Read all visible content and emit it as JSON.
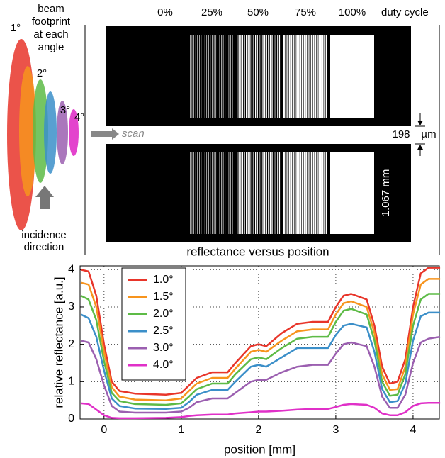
{
  "diagram": {
    "footprint_label": [
      "beam",
      "footprint",
      "at each",
      "angle"
    ],
    "angles": [
      "1°",
      "2°",
      "3°",
      "4°"
    ],
    "incidence_label": [
      "incidence",
      "direction"
    ],
    "duty_labels": [
      "0%",
      "25%",
      "50%",
      "75%",
      "100%"
    ],
    "duty_title": "duty cycle",
    "scan": "scan",
    "gap_value": "198",
    "gap_unit": "µm",
    "width_label": "1.067 mm",
    "section_title": "reflectance versus position"
  },
  "chart_data": {
    "type": "line",
    "xlabel": "position [mm]",
    "ylabel": "relative reflectance [a.u.]",
    "x": [
      -0.3,
      -0.2,
      -0.1,
      0,
      0.1,
      0.2,
      0.4,
      0.8,
      1.0,
      1.1,
      1.2,
      1.4,
      1.6,
      1.7,
      1.9,
      2.0,
      2.1,
      2.3,
      2.5,
      2.7,
      2.9,
      3.0,
      3.1,
      3.2,
      3.4,
      3.5,
      3.6,
      3.7,
      3.8,
      3.9,
      4.0,
      4.1,
      4.2,
      4.35
    ],
    "series": [
      {
        "name": "1.0°",
        "color": "#e8352a",
        "values": [
          4.0,
          3.95,
          3.3,
          2.0,
          1.0,
          0.75,
          0.68,
          0.65,
          0.7,
          0.9,
          1.1,
          1.25,
          1.25,
          1.5,
          1.95,
          2.0,
          1.95,
          2.3,
          2.55,
          2.6,
          2.6,
          3.0,
          3.3,
          3.35,
          3.2,
          2.5,
          1.4,
          0.95,
          1.0,
          1.6,
          3.0,
          3.9,
          4.05,
          4.05
        ]
      },
      {
        "name": "1.5°",
        "color": "#f7941d",
        "values": [
          3.65,
          3.6,
          3.0,
          1.8,
          0.85,
          0.6,
          0.52,
          0.5,
          0.55,
          0.75,
          0.95,
          1.1,
          1.1,
          1.35,
          1.8,
          1.85,
          1.8,
          2.1,
          2.35,
          2.4,
          2.4,
          2.8,
          3.1,
          3.15,
          3.0,
          2.3,
          1.2,
          0.78,
          0.8,
          1.4,
          2.8,
          3.6,
          3.75,
          3.75
        ]
      },
      {
        "name": "2.0°",
        "color": "#5dbb46",
        "values": [
          3.3,
          3.2,
          2.65,
          1.55,
          0.7,
          0.48,
          0.4,
          0.38,
          0.42,
          0.6,
          0.8,
          0.95,
          0.95,
          1.2,
          1.6,
          1.65,
          1.6,
          1.9,
          2.15,
          2.2,
          2.2,
          2.6,
          2.9,
          2.95,
          2.8,
          2.1,
          1.0,
          0.62,
          0.65,
          1.2,
          2.5,
          3.2,
          3.35,
          3.35
        ]
      },
      {
        "name": "2.5°",
        "color": "#3b8fc9",
        "values": [
          2.8,
          2.7,
          2.2,
          1.3,
          0.55,
          0.35,
          0.28,
          0.27,
          0.3,
          0.45,
          0.65,
          0.78,
          0.78,
          1.0,
          1.4,
          1.45,
          1.4,
          1.65,
          1.9,
          1.9,
          1.9,
          2.25,
          2.5,
          2.55,
          2.45,
          1.8,
          0.8,
          0.45,
          0.48,
          0.95,
          2.1,
          2.75,
          2.85,
          2.85
        ]
      },
      {
        "name": "3.0°",
        "color": "#9b5fb0",
        "values": [
          2.1,
          2.05,
          1.6,
          0.9,
          0.35,
          0.2,
          0.17,
          0.17,
          0.2,
          0.3,
          0.45,
          0.55,
          0.55,
          0.7,
          1.0,
          1.05,
          1.05,
          1.25,
          1.4,
          1.45,
          1.45,
          1.75,
          2.0,
          2.05,
          1.95,
          1.4,
          0.6,
          0.3,
          0.3,
          0.65,
          1.5,
          2.05,
          2.15,
          2.2
        ]
      },
      {
        "name": "4.0°",
        "color": "#e030c8",
        "values": [
          0.42,
          0.4,
          0.25,
          0.1,
          0.03,
          0.02,
          0.02,
          0.03,
          0.05,
          0.08,
          0.1,
          0.12,
          0.12,
          0.15,
          0.18,
          0.2,
          0.2,
          0.22,
          0.25,
          0.27,
          0.27,
          0.32,
          0.38,
          0.4,
          0.38,
          0.3,
          0.15,
          0.1,
          0.1,
          0.18,
          0.35,
          0.42,
          0.43,
          0.43
        ]
      }
    ],
    "xlim": [
      -0.31,
      4.34
    ],
    "ylim": [
      0,
      4.1
    ],
    "xticks": [
      0,
      1,
      2,
      3,
      4
    ],
    "yticks": [
      0,
      1,
      2,
      3,
      4
    ],
    "grid": true,
    "legend": "upper left"
  }
}
